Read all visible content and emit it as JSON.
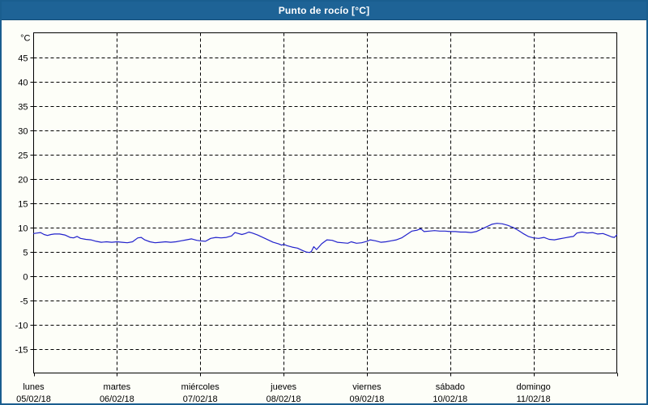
{
  "window": {
    "title": "Punto de rocío [°C]"
  },
  "colors": {
    "titlebar_bg": "#1E6396",
    "titlebar_text": "#FFFFFF",
    "frame_border": "#1A5E8F",
    "background": "#FDFEF8",
    "line": "#2222CC",
    "grid": "#000000",
    "axis": "#000000",
    "label_text": "#000000"
  },
  "chart_data": {
    "type": "line",
    "title": "Punto de rocío [°C]",
    "ylabel": "°C",
    "xlabel": "",
    "ylim": [
      -20,
      50
    ],
    "y_ticks": [
      -15,
      -10,
      -5,
      0,
      5,
      10,
      15,
      20,
      25,
      30,
      35,
      40,
      45
    ],
    "grid": "dashed",
    "legend_position": "none",
    "x_days": [
      {
        "name": "lunes",
        "date": "05/02/18"
      },
      {
        "name": "martes",
        "date": "06/02/18"
      },
      {
        "name": "miércoles",
        "date": "07/02/18"
      },
      {
        "name": "jueves",
        "date": "08/02/18"
      },
      {
        "name": "viernes",
        "date": "09/02/18"
      },
      {
        "name": "sábado",
        "date": "10/02/18"
      },
      {
        "name": "domingo",
        "date": "11/02/18"
      }
    ],
    "x_range_hours": [
      0,
      168
    ],
    "series": [
      {
        "name": "Punto de rocío",
        "color": "#2222CC",
        "points": [
          [
            0,
            8.7
          ],
          [
            1,
            8.8
          ],
          [
            2,
            8.9
          ],
          [
            3,
            8.5
          ],
          [
            4,
            8.3
          ],
          [
            5,
            8.5
          ],
          [
            6,
            8.6
          ],
          [
            7.5,
            8.6
          ],
          [
            9,
            8.4
          ],
          [
            10.5,
            7.9
          ],
          [
            11.5,
            7.8
          ],
          [
            12.5,
            8.1
          ],
          [
            13.5,
            7.7
          ],
          [
            15,
            7.5
          ],
          [
            16.5,
            7.4
          ],
          [
            18,
            7.1
          ],
          [
            19.5,
            6.9
          ],
          [
            21,
            7.0
          ],
          [
            22.5,
            6.9
          ],
          [
            24,
            7.0
          ],
          [
            25.5,
            6.9
          ],
          [
            27,
            6.8
          ],
          [
            28.5,
            7.0
          ],
          [
            30,
            7.8
          ],
          [
            31,
            7.9
          ],
          [
            32,
            7.4
          ],
          [
            33.5,
            7.0
          ],
          [
            35,
            6.8
          ],
          [
            36.5,
            6.9
          ],
          [
            38,
            7.0
          ],
          [
            39.5,
            6.9
          ],
          [
            41,
            7.0
          ],
          [
            42.5,
            7.2
          ],
          [
            44,
            7.4
          ],
          [
            45.5,
            7.6
          ],
          [
            47,
            7.3
          ],
          [
            48,
            7.2
          ],
          [
            49.5,
            7.1
          ],
          [
            51,
            7.7
          ],
          [
            52.5,
            7.9
          ],
          [
            54,
            7.8
          ],
          [
            55.5,
            7.9
          ],
          [
            57,
            8.2
          ],
          [
            58,
            8.9
          ],
          [
            59,
            8.7
          ],
          [
            60,
            8.5
          ],
          [
            61,
            8.7
          ],
          [
            62,
            9.0
          ],
          [
            63,
            8.8
          ],
          [
            64.5,
            8.4
          ],
          [
            66,
            7.9
          ],
          [
            67.5,
            7.4
          ],
          [
            69,
            6.9
          ],
          [
            70.5,
            6.6
          ],
          [
            71.5,
            6.3
          ],
          [
            72,
            6.5
          ],
          [
            73,
            6.2
          ],
          [
            74.5,
            5.9
          ],
          [
            76,
            5.7
          ],
          [
            77.5,
            5.2
          ],
          [
            78.5,
            4.9
          ],
          [
            79.5,
            4.8
          ],
          [
            80,
            5.0
          ],
          [
            80.7,
            6.0
          ],
          [
            81.5,
            5.4
          ],
          [
            83,
            6.6
          ],
          [
            84.5,
            7.4
          ],
          [
            86,
            7.3
          ],
          [
            87.5,
            6.9
          ],
          [
            89,
            6.8
          ],
          [
            90.5,
            6.7
          ],
          [
            91.5,
            7.0
          ],
          [
            93,
            6.7
          ],
          [
            94.5,
            6.8
          ],
          [
            96,
            7.1
          ],
          [
            97,
            7.4
          ],
          [
            98.5,
            7.2
          ],
          [
            100,
            6.9
          ],
          [
            101.5,
            7.0
          ],
          [
            103,
            7.2
          ],
          [
            104.5,
            7.4
          ],
          [
            106,
            7.8
          ],
          [
            107.5,
            8.5
          ],
          [
            109,
            9.2
          ],
          [
            110.5,
            9.4
          ],
          [
            111.5,
            9.7
          ],
          [
            112.5,
            9.1
          ],
          [
            114,
            9.2
          ],
          [
            115.5,
            9.3
          ],
          [
            117,
            9.2
          ],
          [
            118.5,
            9.2
          ],
          [
            120,
            9.1
          ],
          [
            121.5,
            9.1
          ],
          [
            123,
            9.0
          ],
          [
            124.5,
            9.0
          ],
          [
            126,
            8.9
          ],
          [
            127.5,
            9.1
          ],
          [
            129,
            9.6
          ],
          [
            130.5,
            10.1
          ],
          [
            132,
            10.6
          ],
          [
            133.5,
            10.8
          ],
          [
            135,
            10.7
          ],
          [
            136.5,
            10.4
          ],
          [
            138,
            10.0
          ],
          [
            139.5,
            9.4
          ],
          [
            141,
            8.7
          ],
          [
            142.5,
            8.1
          ],
          [
            144,
            7.8
          ],
          [
            145.5,
            7.7
          ],
          [
            147,
            7.9
          ],
          [
            148.5,
            7.5
          ],
          [
            150,
            7.4
          ],
          [
            151.5,
            7.6
          ],
          [
            153,
            7.8
          ],
          [
            154.5,
            8.0
          ],
          [
            155.5,
            8.1
          ],
          [
            156.5,
            8.8
          ],
          [
            158,
            9.0
          ],
          [
            159.5,
            8.8
          ],
          [
            161,
            8.9
          ],
          [
            162.5,
            8.6
          ],
          [
            164,
            8.7
          ],
          [
            165.5,
            8.3
          ],
          [
            166.5,
            8.0
          ],
          [
            167.3,
            7.9
          ],
          [
            168,
            8.4
          ]
        ]
      }
    ]
  }
}
